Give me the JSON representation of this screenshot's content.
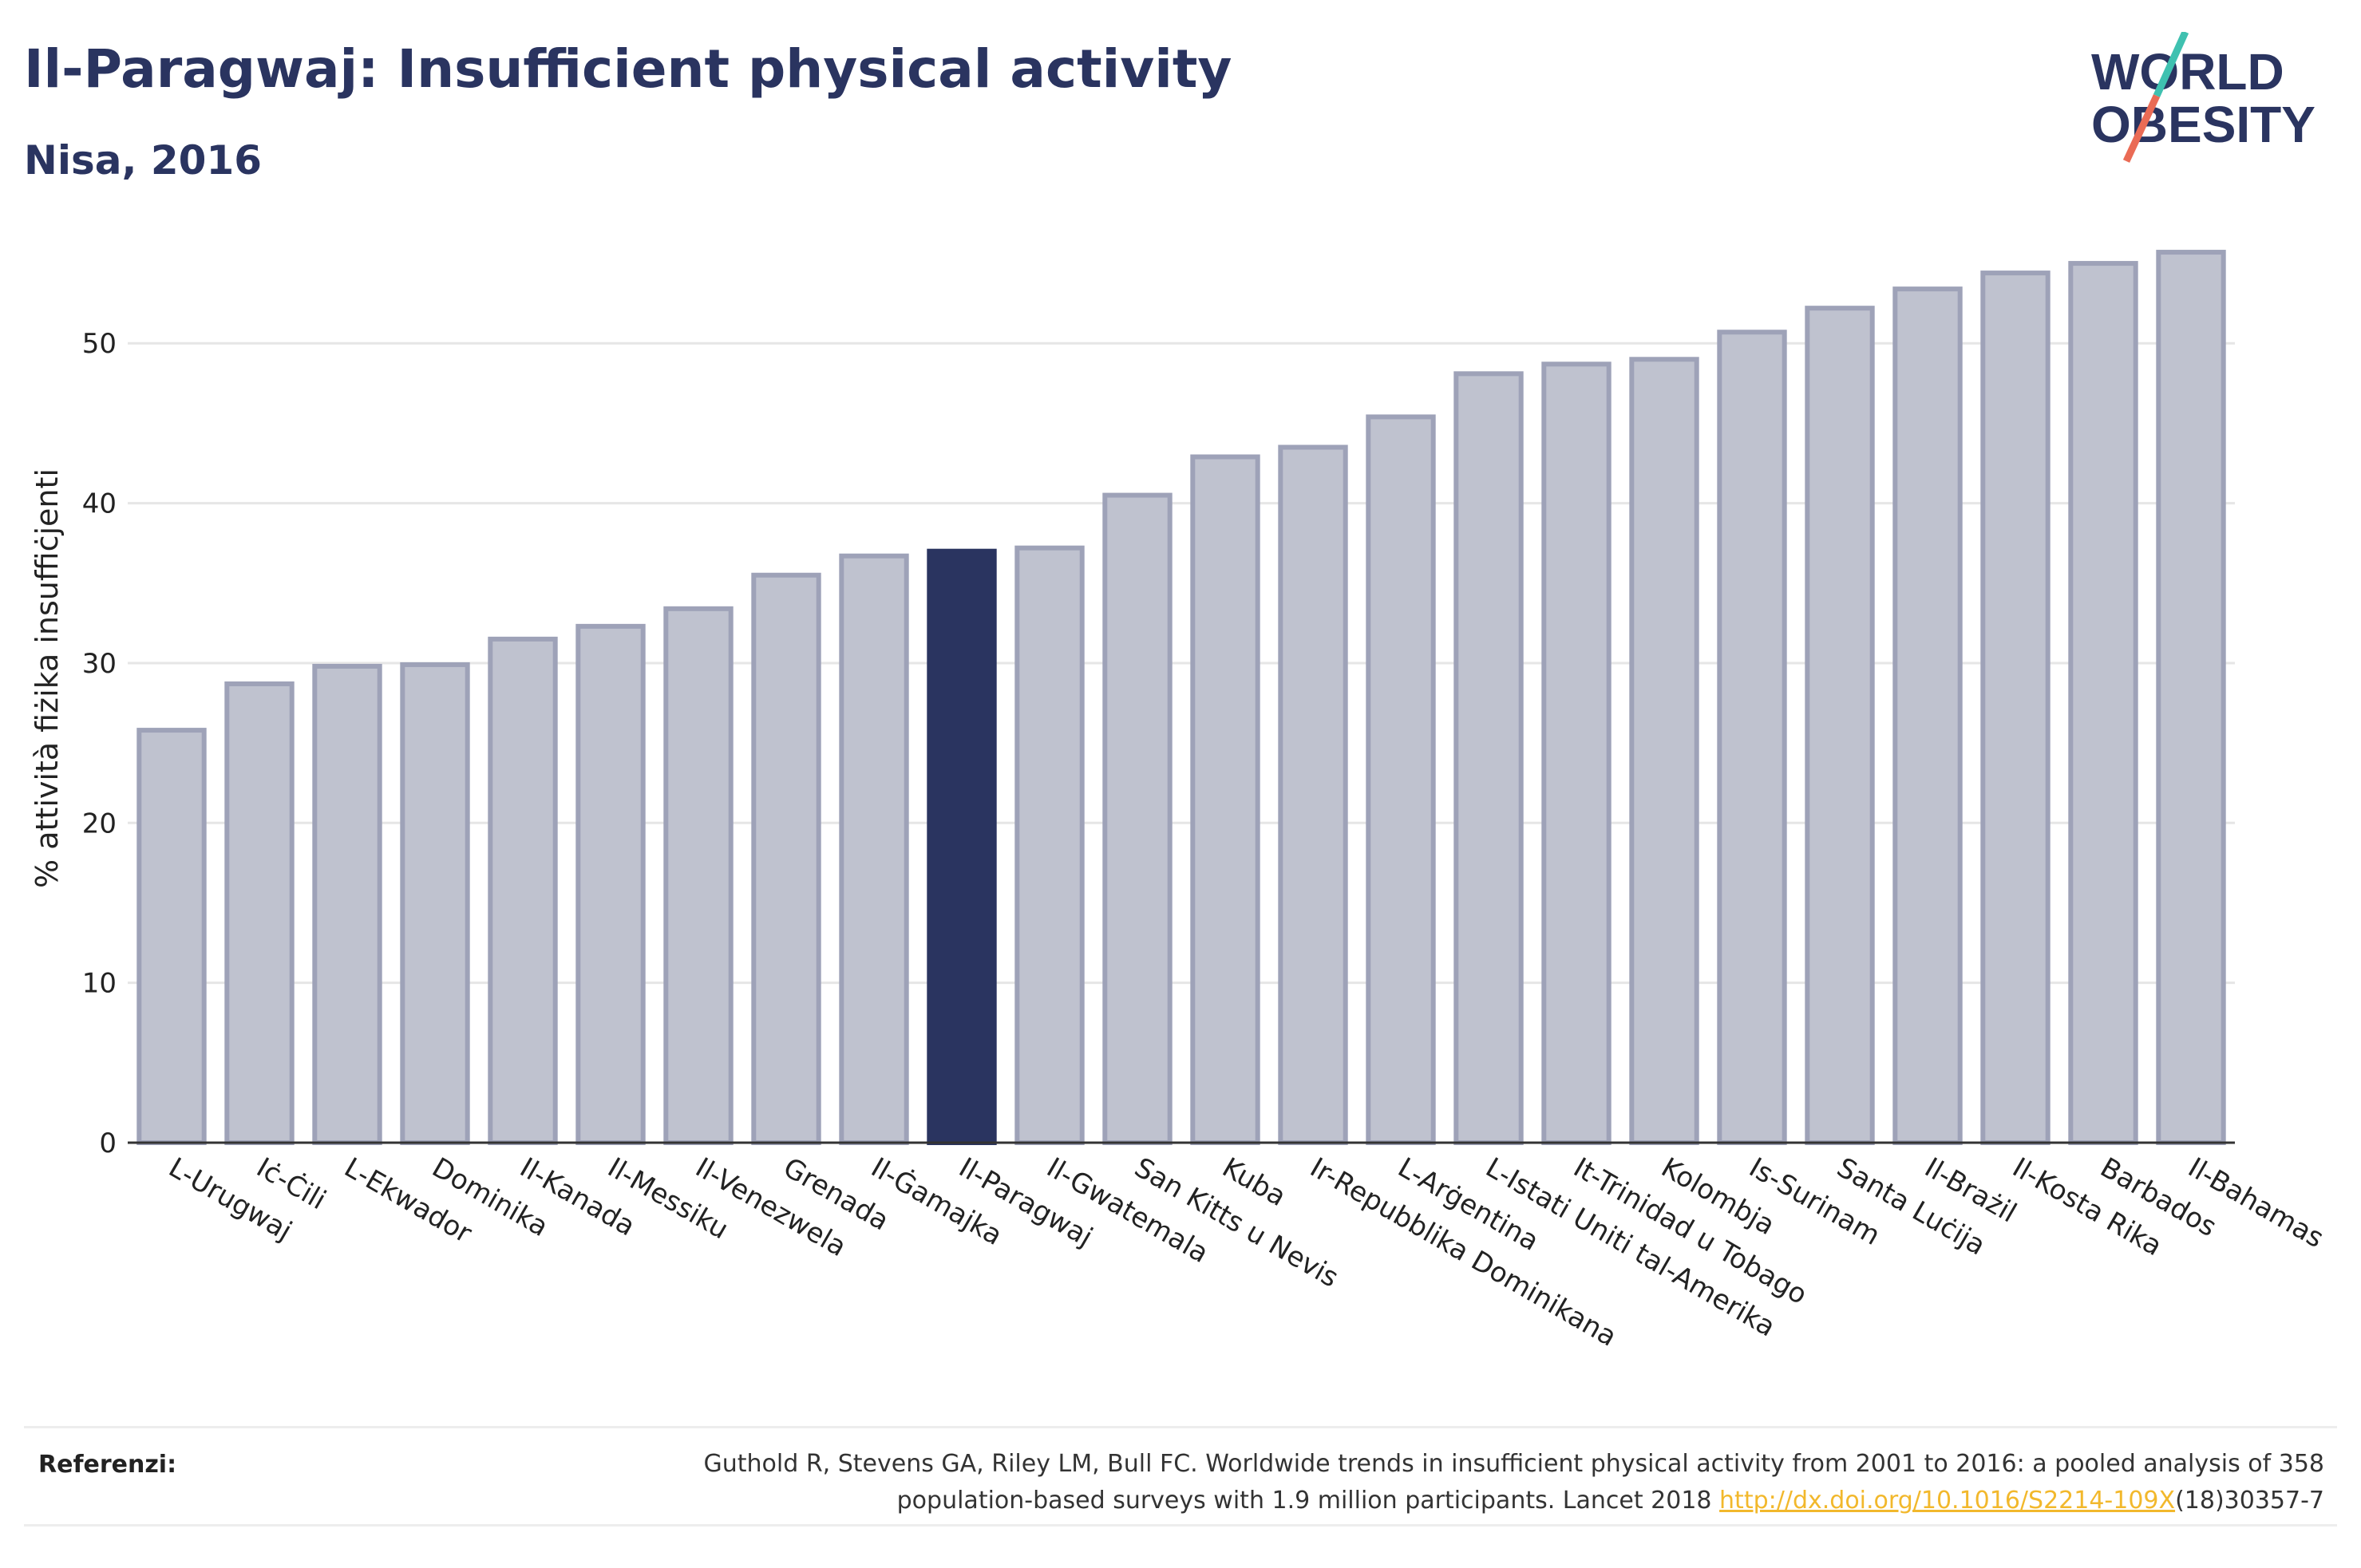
{
  "title": "Il-Paragwaj: Insufficient physical activity",
  "subtitle": "Nisa, 2016",
  "logo": {
    "line1": "WORLD",
    "line2": "OBESITY"
  },
  "colors": {
    "highlight": "#2a3460",
    "bar": "#bfc2cf",
    "bar_border": "#9ea2b8",
    "link": "#f2b82c"
  },
  "chart_data": {
    "type": "bar",
    "title": "Il-Paragwaj: Insufficient physical activity",
    "subtitle": "Nisa, 2016",
    "xlabel": "",
    "ylabel": "% attività fiżika insuffiċjenti",
    "ylim": [
      0,
      57
    ],
    "yticks": [
      0,
      10,
      20,
      30,
      40,
      50
    ],
    "grid": true,
    "highlight": "Il-Paragwaj",
    "categories": [
      "L-Urugwaj",
      "Iċ-Ċili",
      "L-Ekwador",
      "Dominika",
      "Il-Kanada",
      "Il-Messiku",
      "Il-Venezwela",
      "Grenada",
      "Il-Ġamajka",
      "Il-Paragwaj",
      "Il-Gwatemala",
      "San Kitts u Nevis",
      "Kuba",
      "Ir-Repubblika Dominikana",
      "L-Arġentina",
      "L-Istati Uniti tal-Amerika",
      "It-Trinidad u Tobago",
      "Kolombja",
      "Is-Surinam",
      "Santa Luċija",
      "Il-Brażil",
      "Il-Kosta Rika",
      "Barbados",
      "Il-Bahamas"
    ],
    "values": [
      25.8,
      28.7,
      29.8,
      29.9,
      31.5,
      32.3,
      33.4,
      35.5,
      36.7,
      37.0,
      37.2,
      40.5,
      42.9,
      43.5,
      45.4,
      48.1,
      48.7,
      49.0,
      50.7,
      52.2,
      53.4,
      54.4,
      55.0,
      55.7
    ]
  },
  "footer": {
    "label": "Referenzi:",
    "text_before": "Guthold R, Stevens GA, Riley LM, Bull FC. Worldwide trends in insufficient physical activity from 2001 to 2016: a pooled analysis of 358 population-based surveys with 1.9 million participants. Lancet 2018 ",
    "link": "http://dx.doi.org/10.1016/S2214-109X",
    "text_after": "(18)30357-7"
  }
}
